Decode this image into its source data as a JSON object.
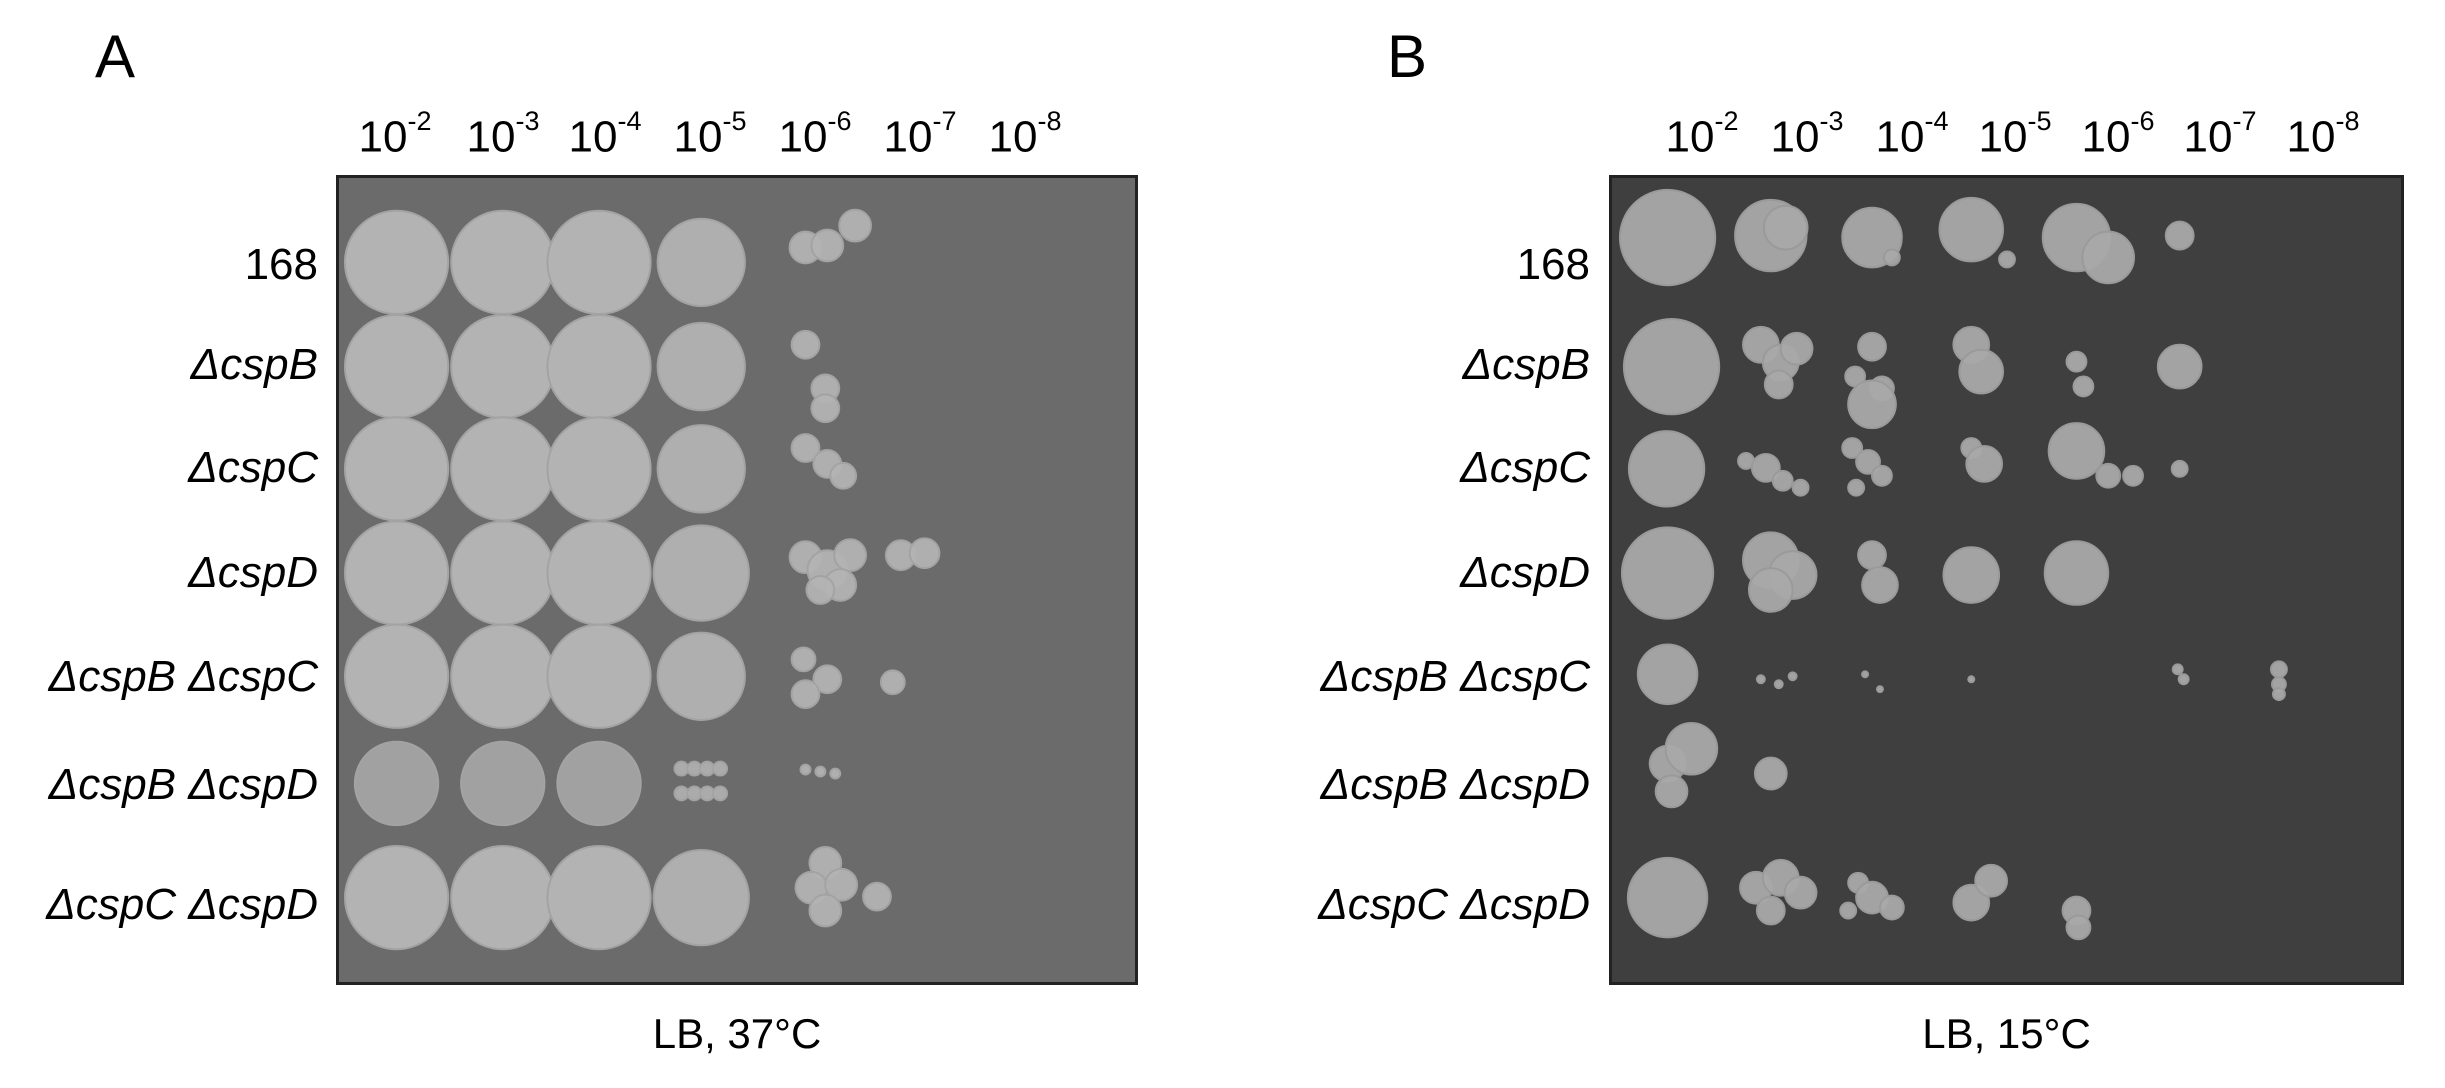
{
  "panels": [
    {
      "letter": "A",
      "condition": "LB, 37°C",
      "dilutions": [
        "-2",
        "-3",
        "-4",
        "-5",
        "-6",
        "-7",
        "-8"
      ],
      "strains": [
        "168",
        "ΔcspB",
        "ΔcspC",
        "ΔcspD",
        "ΔcspB ΔcspC",
        "ΔcspB ΔcspD",
        "ΔcspC ΔcspD"
      ],
      "colors": {
        "plate": "#6b6b6b",
        "colony": "#b3b3b3",
        "colony_edge": "#a3a3a3"
      }
    },
    {
      "letter": "B",
      "condition": "LB, 15°C",
      "dilutions": [
        "-2",
        "-3",
        "-4",
        "-5",
        "-6",
        "-7",
        "-8"
      ],
      "strains": [
        "168",
        "ΔcspB",
        "ΔcspC",
        "ΔcspD",
        "ΔcspB ΔcspC",
        "ΔcspB ΔcspD",
        "ΔcspC ΔcspD"
      ],
      "colors": {
        "plate": "#3f3f3f",
        "colony": "#a9a9a9",
        "colony_edge": "#9a9a9a"
      }
    }
  ]
}
